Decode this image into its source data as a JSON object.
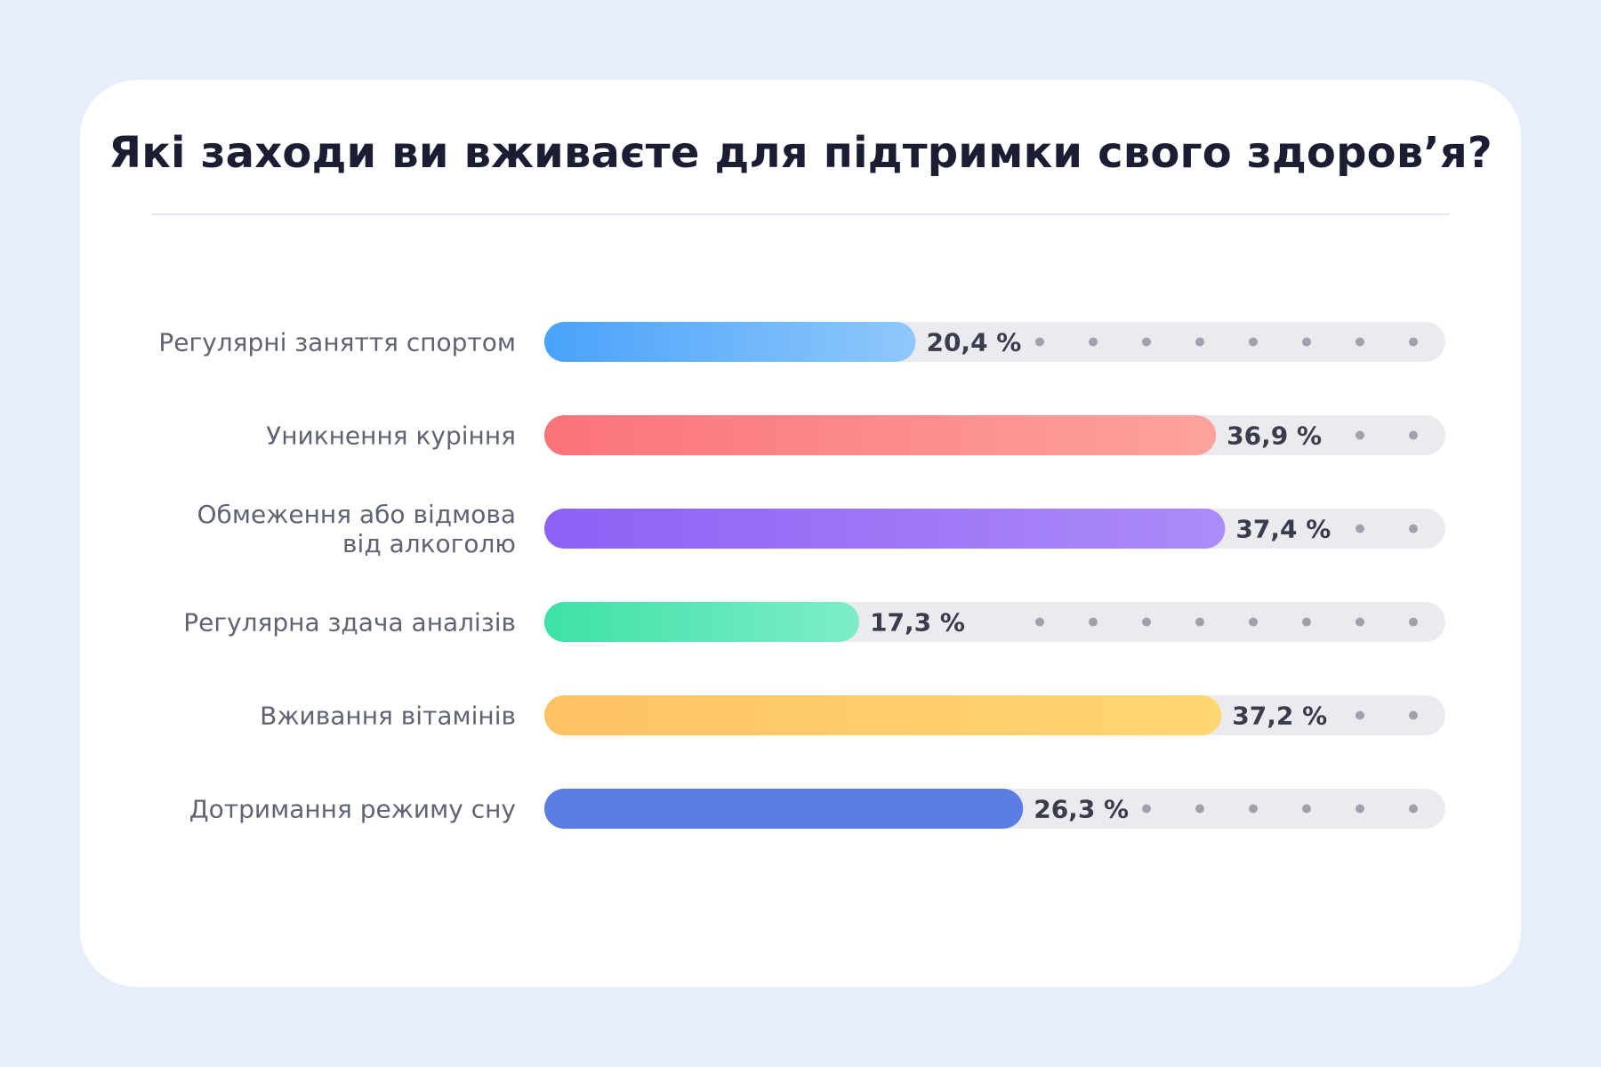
{
  "chart_data": {
    "type": "bar",
    "orientation": "horizontal",
    "title": "Які заходи ви вживаєте для підтримки свого здоров’я?",
    "xlim": [
      0,
      100
    ],
    "categories": [
      [
        "Регулярні заняття спортом"
      ],
      [
        "Уникнення куріння"
      ],
      [
        "Обмеження або відмова",
        "від алкоголю"
      ],
      [
        "Регулярна здача аналізів"
      ],
      [
        "Вживання вітамінів"
      ],
      [
        "Дотримання режиму сну"
      ]
    ],
    "values": [
      20.4,
      36.9,
      37.4,
      17.3,
      37.2,
      26.3
    ],
    "value_labels": [
      "20,4 %",
      "36,9 %",
      "37,4 %",
      "17,3 %",
      "37,2 %",
      "26,3 %"
    ],
    "colors": [
      [
        "#4aa2fb",
        "#8fc8fb"
      ],
      [
        "#fb7378",
        "#fda39d"
      ],
      [
        "#8c61f6",
        "#ad8bf8"
      ],
      [
        "#3ee1a6",
        "#7eedc7"
      ],
      [
        "#fec262",
        "#fed770"
      ],
      [
        "#5b7ce0",
        "#5b7ce0"
      ]
    ],
    "track_color": "#ebebef",
    "dot_color": "#a1a1ad"
  }
}
